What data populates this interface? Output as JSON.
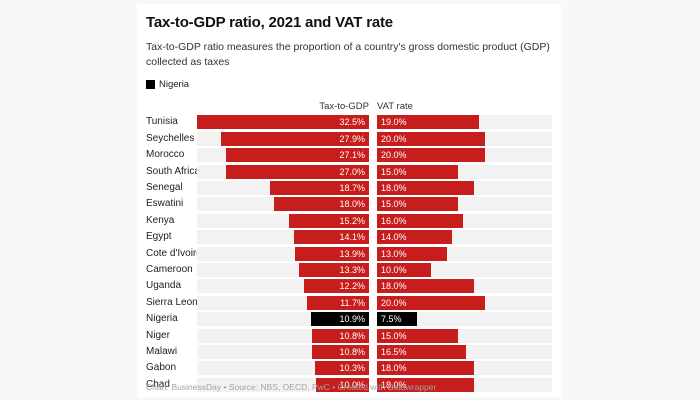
{
  "page": {
    "background": "#f8f8f8",
    "card_background": "#ffffff"
  },
  "header": {
    "title": "Tax-to-GDP ratio, 2021 and VAT rate",
    "subtitle": "Tax-to-GDP ratio measures the proportion of a country's gross domestic product (GDP) collected as taxes",
    "legend": {
      "label": "Nigeria",
      "color": "#000000"
    }
  },
  "columns": {
    "tax_header": "Tax-to-GDP",
    "vat_header": "VAT rate"
  },
  "chart_data": {
    "type": "bar",
    "orientation": "horizontal",
    "categories": [
      "Tunisia",
      "Seychelles",
      "Morocco",
      "South Africa",
      "Senegal",
      "Eswatini",
      "Kenya",
      "Egypt",
      "Cote d'Ivoire",
      "Cameroon",
      "Uganda",
      "Sierra Leone",
      "Nigeria",
      "Niger",
      "Malawi",
      "Gabon",
      "Chad"
    ],
    "series": [
      {
        "name": "Tax-to-GDP",
        "values": [
          32.5,
          27.9,
          27.1,
          27.0,
          18.7,
          18.0,
          15.2,
          14.1,
          13.9,
          13.3,
          12.2,
          11.7,
          10.9,
          10.8,
          10.8,
          10.3,
          10.0
        ]
      },
      {
        "name": "VAT rate",
        "values": [
          19.0,
          20.0,
          20.0,
          15.0,
          18.0,
          15.0,
          16.0,
          14.0,
          13.0,
          10.0,
          18.0,
          20.0,
          7.5,
          15.0,
          16.5,
          18.0,
          18.0
        ]
      }
    ],
    "value_suffix": "%",
    "max": 32.5,
    "highlight": "Nigeria",
    "colors": {
      "bar": "#c71e1d",
      "highlight": "#000000",
      "track": "#f2f2f2",
      "value_text": "#ffffff"
    },
    "title": "Tax-to-GDP ratio, 2021 and VAT rate",
    "grid": false,
    "legend_position": "top-left"
  },
  "footer": {
    "text": "Chart: BusinessDay • Source: NBS, OECD, PwC • Created with Datawrapper"
  }
}
